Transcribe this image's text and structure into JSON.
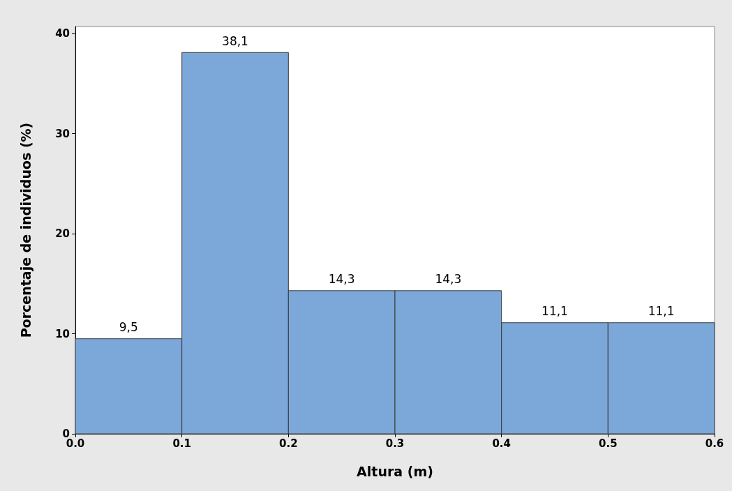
{
  "chart_data": {
    "type": "histogram",
    "xlabel": "Altura (m)",
    "ylabel": "Porcentaje de individuos (%)",
    "bins": [
      0,
      0.1,
      0.2,
      0.3,
      0.4,
      0.5,
      0.6
    ],
    "values": [
      9.5,
      38.1,
      14.3,
      14.3,
      11.1,
      11.1
    ],
    "value_labels": [
      "9,5",
      "38,1",
      "14,3",
      "14,3",
      "11,1",
      "11,1"
    ],
    "color": "#7ba7d9",
    "xlim": [
      0,
      0.6
    ],
    "xticks": [
      {
        "value": 0,
        "label": "0.0"
      },
      0.1,
      0.2,
      0.3,
      0.4,
      0.5,
      0.6
    ],
    "ylim": [
      0,
      40.7
    ],
    "yticks": [
      0,
      10,
      20,
      30,
      40
    ],
    "grid": false
  }
}
